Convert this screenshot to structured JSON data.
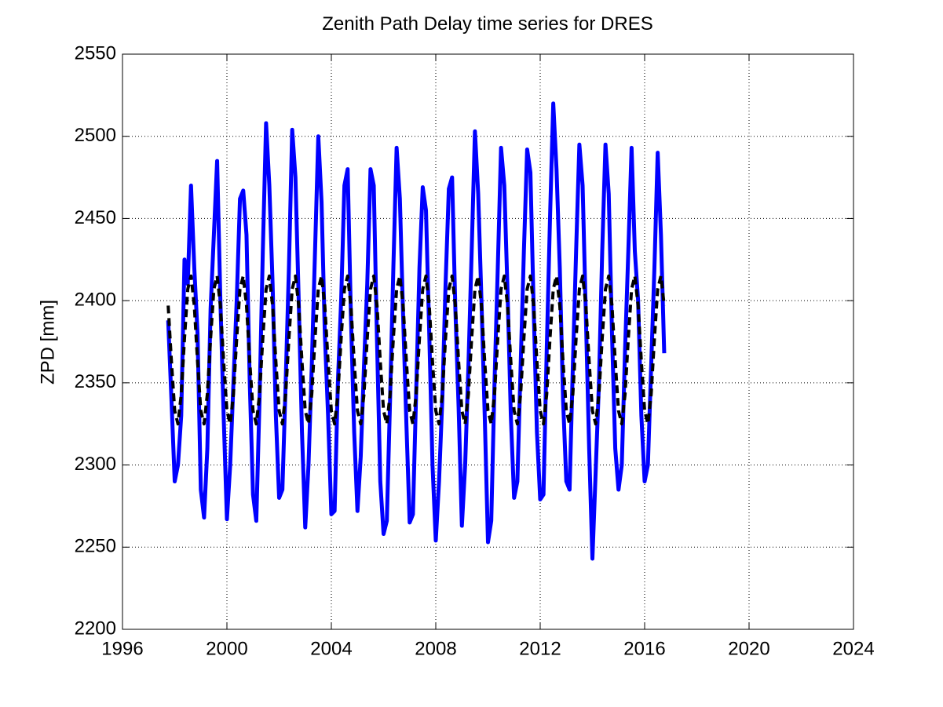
{
  "chart_data": {
    "type": "line",
    "title": "Zenith Path Delay time series for DRES",
    "y_label": "ZPD [mm]",
    "xlim": [
      1996,
      2024
    ],
    "xticks": [
      1996,
      2000,
      2004,
      2008,
      2012,
      2016,
      2020,
      2024
    ],
    "ylim": [
      2200,
      2550
    ],
    "yticks": [
      2200,
      2250,
      2300,
      2350,
      2400,
      2450,
      2500,
      2550
    ],
    "grid": true,
    "x": [
      1997.75,
      1997.875,
      1998,
      1998.125,
      1998.25,
      1998.375,
      1998.5,
      1998.625,
      1998.75,
      1998.875,
      1999,
      1999.125,
      1999.25,
      1999.375,
      1999.5,
      1999.625,
      1999.75,
      1999.875,
      2000,
      2000.125,
      2000.25,
      2000.375,
      2000.5,
      2000.625,
      2000.75,
      2000.875,
      2001,
      2001.125,
      2001.25,
      2001.375,
      2001.5,
      2001.625,
      2001.75,
      2001.875,
      2002,
      2002.125,
      2002.25,
      2002.375,
      2002.5,
      2002.625,
      2002.75,
      2002.875,
      2003,
      2003.125,
      2003.25,
      2003.375,
      2003.5,
      2003.625,
      2003.75,
      2003.875,
      2004,
      2004.125,
      2004.25,
      2004.375,
      2004.5,
      2004.625,
      2004.75,
      2004.875,
      2005,
      2005.125,
      2005.25,
      2005.375,
      2005.5,
      2005.625,
      2005.75,
      2005.875,
      2006,
      2006.125,
      2006.25,
      2006.375,
      2006.5,
      2006.625,
      2006.75,
      2006.875,
      2007,
      2007.125,
      2007.25,
      2007.375,
      2007.5,
      2007.625,
      2007.75,
      2007.875,
      2008,
      2008.125,
      2008.25,
      2008.375,
      2008.5,
      2008.625,
      2008.75,
      2008.875,
      2009,
      2009.125,
      2009.25,
      2009.375,
      2009.5,
      2009.625,
      2009.75,
      2009.875,
      2010,
      2010.125,
      2010.25,
      2010.375,
      2010.5,
      2010.625,
      2010.75,
      2010.875,
      2011,
      2011.125,
      2011.25,
      2011.375,
      2011.5,
      2011.625,
      2011.75,
      2011.875,
      2012,
      2012.125,
      2012.25,
      2012.375,
      2012.5,
      2012.625,
      2012.75,
      2012.875,
      2013,
      2013.125,
      2013.25,
      2013.375,
      2013.5,
      2013.625,
      2013.75,
      2013.875,
      2014,
      2014.125,
      2014.25,
      2014.375,
      2014.5,
      2014.625,
      2014.75,
      2014.875,
      2015,
      2015.125,
      2015.25,
      2015.375,
      2015.5,
      2015.625,
      2015.75,
      2015.875,
      2016,
      2016.125,
      2016.25,
      2016.375,
      2016.5,
      2016.625,
      2016.75
    ],
    "series": [
      {
        "color": "#0000ff",
        "line_style": "solid",
        "values": [
          2388,
          2340,
          2290,
          2300,
          2330,
          2425,
          2410,
          2470,
          2420,
          2380,
          2285,
          2268,
          2310,
          2395,
          2440,
          2485,
          2400,
          2330,
          2267,
          2300,
          2350,
          2400,
          2462,
          2467,
          2440,
          2350,
          2282,
          2266,
          2340,
          2430,
          2508,
          2470,
          2410,
          2330,
          2280,
          2285,
          2350,
          2420,
          2504,
          2475,
          2400,
          2320,
          2262,
          2300,
          2360,
          2430,
          2500,
          2460,
          2380,
          2330,
          2270,
          2272,
          2350,
          2400,
          2470,
          2480,
          2390,
          2320,
          2272,
          2305,
          2360,
          2410,
          2480,
          2470,
          2375,
          2290,
          2258,
          2266,
          2340,
          2420,
          2493,
          2462,
          2390,
          2325,
          2265,
          2270,
          2345,
          2420,
          2469,
          2455,
          2380,
          2300,
          2254,
          2290,
          2340,
          2410,
          2468,
          2475,
          2395,
          2335,
          2263,
          2300,
          2360,
          2430,
          2503,
          2465,
          2400,
          2330,
          2253,
          2266,
          2350,
          2420,
          2493,
          2470,
          2405,
          2330,
          2280,
          2290,
          2360,
          2430,
          2492,
          2478,
          2395,
          2320,
          2279,
          2282,
          2370,
          2450,
          2520,
          2480,
          2420,
          2340,
          2290,
          2285,
          2360,
          2430,
          2495,
          2470,
          2390,
          2310,
          2243,
          2296,
          2350,
          2430,
          2495,
          2465,
          2380,
          2310,
          2285,
          2300,
          2370,
          2430,
          2493,
          2430,
          2400,
          2330,
          2290,
          2300,
          2360,
          2420,
          2490,
          2440,
          2368
        ]
      },
      {
        "color": "#000000",
        "line_style": "dashed",
        "values": [
          2397,
          2363,
          2333,
          2325,
          2343,
          2377,
          2407,
          2415,
          2397,
          2363,
          2333,
          2325,
          2343,
          2377,
          2407,
          2415,
          2397,
          2363,
          2333,
          2325,
          2343,
          2377,
          2407,
          2415,
          2397,
          2363,
          2333,
          2325,
          2343,
          2377,
          2407,
          2415,
          2397,
          2363,
          2333,
          2325,
          2343,
          2377,
          2407,
          2415,
          2397,
          2363,
          2333,
          2325,
          2343,
          2377,
          2407,
          2415,
          2397,
          2363,
          2333,
          2325,
          2343,
          2377,
          2407,
          2415,
          2397,
          2363,
          2333,
          2325,
          2343,
          2377,
          2407,
          2415,
          2397,
          2363,
          2333,
          2325,
          2343,
          2377,
          2407,
          2415,
          2397,
          2363,
          2333,
          2325,
          2343,
          2377,
          2407,
          2415,
          2397,
          2363,
          2333,
          2325,
          2343,
          2377,
          2407,
          2415,
          2397,
          2363,
          2333,
          2325,
          2343,
          2377,
          2407,
          2415,
          2397,
          2363,
          2333,
          2325,
          2343,
          2377,
          2407,
          2415,
          2397,
          2363,
          2333,
          2325,
          2343,
          2377,
          2407,
          2415,
          2397,
          2363,
          2333,
          2325,
          2343,
          2377,
          2407,
          2415,
          2397,
          2363,
          2333,
          2325,
          2343,
          2377,
          2407,
          2415,
          2397,
          2363,
          2333,
          2325,
          2343,
          2377,
          2407,
          2415,
          2397,
          2363,
          2333,
          2325,
          2343,
          2377,
          2407,
          2415,
          2397,
          2363,
          2333,
          2325,
          2343,
          2377,
          2407,
          2415,
          2397
        ]
      }
    ]
  }
}
